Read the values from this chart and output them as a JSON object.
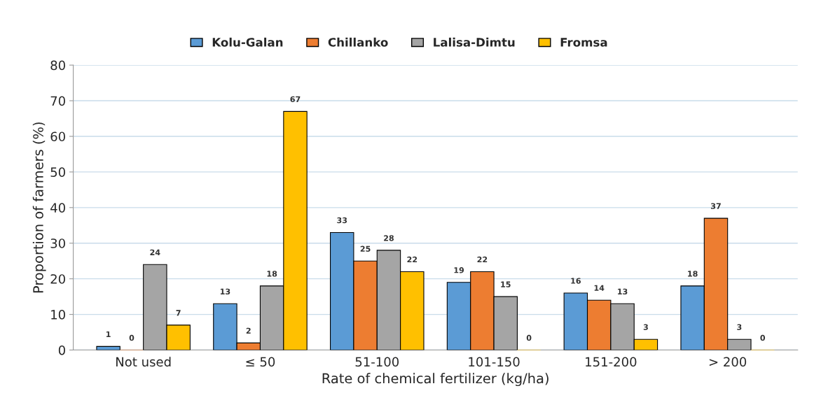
{
  "chart_data": {
    "type": "bar",
    "xlabel": "Rate of chemical fertilizer (kg/ha)",
    "ylabel": "Proportion of farmers (%)",
    "categories": [
      "Not used",
      "≤ 50",
      "51-100",
      "101-150",
      "151-200",
      "> 200"
    ],
    "series": [
      {
        "name": "Kolu-Galan",
        "color": "#5b9bd5",
        "values": [
          1,
          13,
          33,
          19,
          16,
          18
        ]
      },
      {
        "name": "Chillanko",
        "color": "#ed7d31",
        "values": [
          0,
          2,
          25,
          22,
          14,
          37
        ]
      },
      {
        "name": "Lalisa-Dimtu",
        "color": "#a5a5a5",
        "values": [
          24,
          18,
          28,
          15,
          13,
          3
        ]
      },
      {
        "name": "Fromsa",
        "color": "#ffc000",
        "values": [
          7,
          67,
          22,
          0,
          3,
          0
        ]
      }
    ],
    "ylim": [
      0,
      80
    ],
    "yticks": [
      0,
      10,
      20,
      30,
      40,
      50,
      60,
      70,
      80
    ],
    "grid": "y",
    "legend": "top",
    "data_labels": true
  }
}
